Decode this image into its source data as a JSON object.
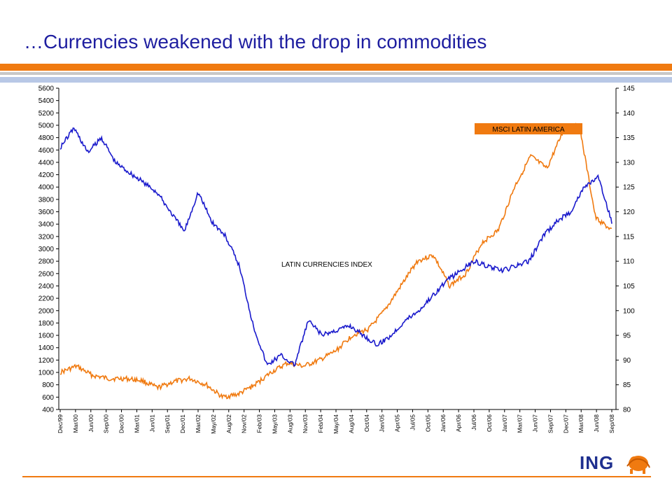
{
  "slide": {
    "title": "…Currencies weakened with the drop in commodities",
    "logo_text": "ING"
  },
  "colors": {
    "title": "#1e1ea0",
    "accent_band": "#f07a10",
    "currency_series": "#1a1acc",
    "msci_series": "#f07a10"
  },
  "chart_data": {
    "type": "line",
    "title": "",
    "xlabel": "",
    "ylabel": "",
    "grid": false,
    "left_axis": {
      "ylim": [
        400,
        5600
      ],
      "ticks": [
        400,
        600,
        800,
        1000,
        1200,
        1400,
        1600,
        1800,
        2000,
        2200,
        2400,
        2600,
        2800,
        3000,
        3200,
        3400,
        3600,
        3800,
        4000,
        4200,
        4400,
        4600,
        4800,
        5000,
        5200,
        5400,
        5600
      ]
    },
    "right_axis": {
      "ylim": [
        80,
        145
      ],
      "ticks": [
        80,
        85,
        90,
        95,
        100,
        105,
        110,
        115,
        120,
        125,
        130,
        135,
        140,
        145
      ]
    },
    "x_tick_labels": [
      "Dec/99",
      "Mar/00",
      "Jun/00",
      "Sep/00",
      "Dec/00",
      "Mar/01",
      "Jun/01",
      "Sep/01",
      "Dec/01",
      "Mar/02",
      "May/02",
      "Aug/02",
      "Nov/02",
      "Feb/03",
      "May/03",
      "Aug/03",
      "Nov/03",
      "Feb/04",
      "May/04",
      "Aug/04",
      "Oct/04",
      "Jan/05",
      "Apr/05",
      "Jul/05",
      "Oct/05",
      "Jan/06",
      "Apr/06",
      "Jul/06",
      "Oct/06",
      "Jan/07",
      "Mar/07",
      "Jun/07",
      "Sep/07",
      "Dec/07",
      "Mar/08",
      "Jun/08",
      "Sep/08"
    ],
    "series": [
      {
        "name": "LATIN CURRENCIES INDEX",
        "axis": "right",
        "color": "#1a1acc",
        "values": [
          133,
          137,
          132,
          135,
          130,
          128,
          126,
          124,
          120,
          116,
          124,
          118,
          115,
          109,
          97,
          89,
          91,
          89,
          98,
          95,
          96,
          97,
          95,
          93,
          95,
          98,
          100,
          103,
          106,
          108,
          110,
          109,
          108,
          109,
          110,
          115,
          118,
          120,
          125,
          127,
          118
        ]
      },
      {
        "name": "MSCI LATIN AMERICA",
        "axis": "left",
        "color": "#f07a10",
        "values": [
          1000,
          1100,
          950,
          900,
          900,
          870,
          750,
          850,
          900,
          800,
          600,
          650,
          800,
          1000,
          1150,
          1100,
          1200,
          1350,
          1600,
          1700,
          2000,
          2400,
          2800,
          2900,
          2400,
          2600,
          3100,
          3300,
          4000,
          4500,
          4300,
          4900,
          5000,
          3500,
          3300
        ]
      }
    ],
    "annotations": [
      {
        "text": "MSCI LATIN AMERICA",
        "boxed": true
      },
      {
        "text": "LATIN CURRENCIES INDEX",
        "boxed": false
      }
    ]
  }
}
